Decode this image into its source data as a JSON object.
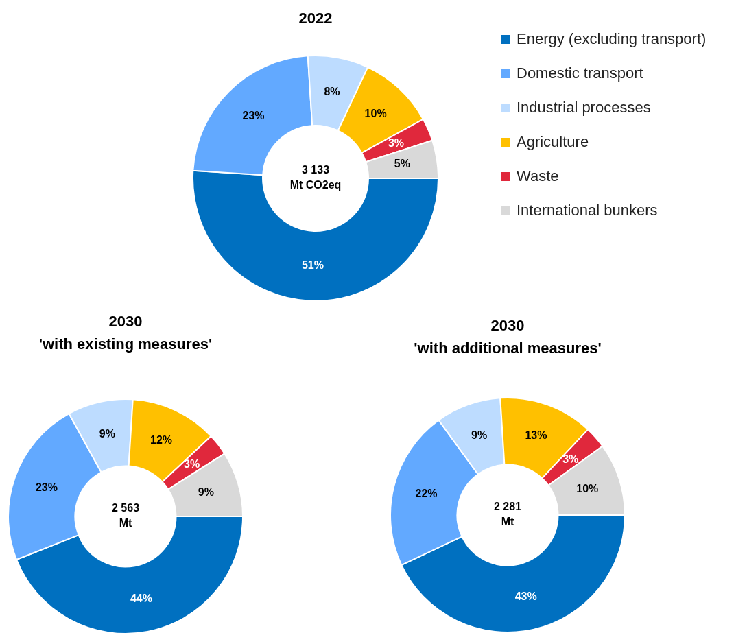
{
  "chart_data": [
    {
      "type": "donut",
      "title": "2022",
      "categories": [
        "Energy (excluding transport)",
        "Domestic transport",
        "Industrial processes",
        "Agriculture",
        "Waste",
        "International bunkers"
      ],
      "values": [
        51,
        23,
        8,
        10,
        3,
        5
      ],
      "value_labels": [
        "51%",
        "23%",
        "8%",
        "10%",
        "3%",
        "5%"
      ],
      "colors": [
        "#0070c0",
        "#62a9ff",
        "#bddcff",
        "#ffc000",
        "#e0283c",
        "#d9d9d9"
      ],
      "legend": "right",
      "annotations": [
        "3 133\nMt CO2eq"
      ]
    },
    {
      "type": "donut",
      "title": "2030\n'with existing measures'",
      "categories": [
        null,
        null,
        null,
        null,
        null,
        null
      ],
      "values": [
        44,
        23,
        9,
        12,
        3,
        9
      ],
      "value_labels": [
        "44%",
        "23%",
        "9%",
        "12%",
        "3%",
        "9%"
      ],
      "colors": [
        "#0070c0",
        "#62a9ff",
        "#bddcff",
        "#ffc000",
        "#e0283c",
        "#d9d9d9"
      ],
      "annotations": [
        "2 563\nMt"
      ]
    },
    {
      "type": "donut",
      "title": "2030\n'with additional measures'",
      "categories": [
        null,
        null,
        null,
        null,
        null,
        null
      ],
      "values": [
        43,
        22,
        9,
        13,
        3,
        10
      ],
      "value_labels": [
        "43%",
        "22%",
        "9%",
        "13%",
        "3%",
        "10%"
      ],
      "colors": [
        "#0070c0",
        "#62a9ff",
        "#bddcff",
        "#ffc000",
        "#e0283c",
        "#d9d9d9"
      ],
      "annotations": [
        "2 281\nMt"
      ]
    }
  ]
}
